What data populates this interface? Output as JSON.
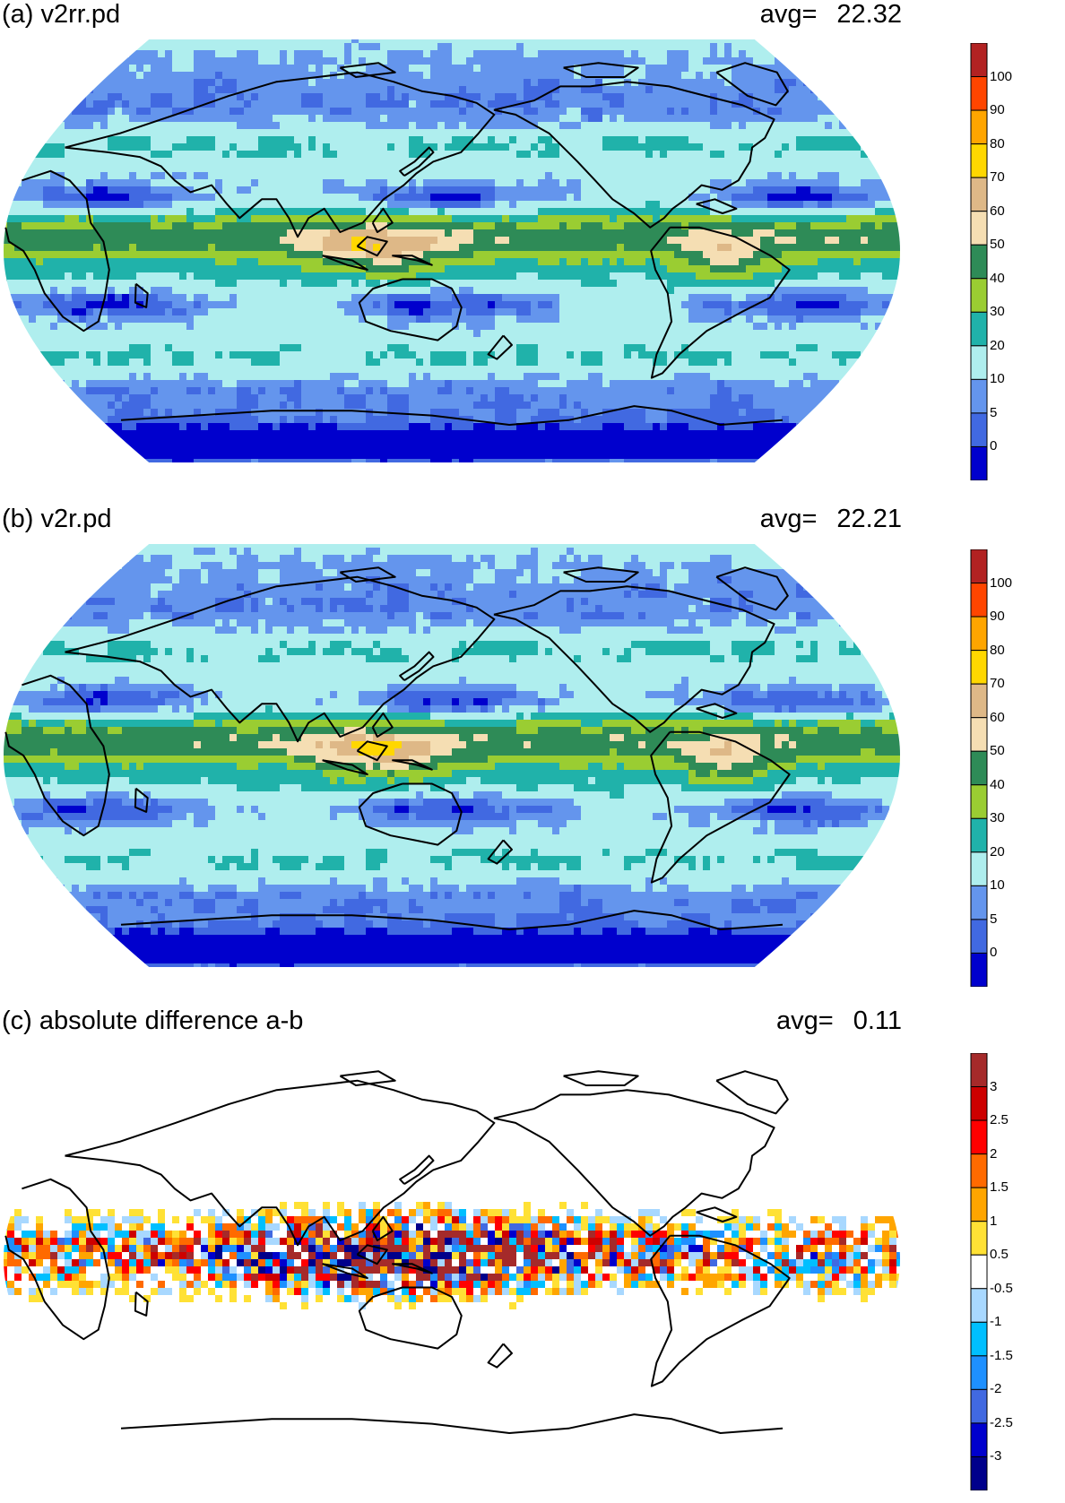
{
  "panels": [
    {
      "title": "(a) v2rr.pd",
      "avg_label": "avg=",
      "avg_value": "22.32",
      "field": "abs",
      "colorbar": {
        "labels": [
          "100",
          "90",
          "80",
          "70",
          "60",
          "50",
          "40",
          "30",
          "20",
          "10",
          "5",
          "0"
        ],
        "colors": [
          "#b22222",
          "#ff4500",
          "#ffa500",
          "#ffd700",
          "#deb887",
          "#f5deb3",
          "#2e8b57",
          "#9acd32",
          "#20b2aa",
          "#afeeee",
          "#6495ed",
          "#4169e1",
          "#0000cd"
        ]
      }
    },
    {
      "title": "(b) v2r.pd",
      "avg_label": "avg=",
      "avg_value": "22.21",
      "field": "abs",
      "colorbar": {
        "labels": [
          "100",
          "90",
          "80",
          "70",
          "60",
          "50",
          "40",
          "30",
          "20",
          "10",
          "5",
          "0"
        ],
        "colors": [
          "#b22222",
          "#ff4500",
          "#ffa500",
          "#ffd700",
          "#deb887",
          "#f5deb3",
          "#2e8b57",
          "#9acd32",
          "#20b2aa",
          "#afeeee",
          "#6495ed",
          "#4169e1",
          "#0000cd"
        ]
      }
    },
    {
      "title": "(c) absolute difference a-b",
      "avg_label": "avg=",
      "avg_value": "0.11",
      "field": "diff",
      "colorbar": {
        "labels": [
          "3",
          "2.5",
          "2",
          "1.5",
          "1",
          "0.5",
          "-0.5",
          "-1",
          "-1.5",
          "-2",
          "-2.5",
          "-3"
        ],
        "colors": [
          "#a52a2a",
          "#cd0000",
          "#ff0000",
          "#ff6a00",
          "#ffa500",
          "#ffe135",
          "#ffffff",
          "#a8d8ff",
          "#00bfff",
          "#1e90ff",
          "#4169e1",
          "#0000cd",
          "#00008b"
        ]
      }
    }
  ]
}
